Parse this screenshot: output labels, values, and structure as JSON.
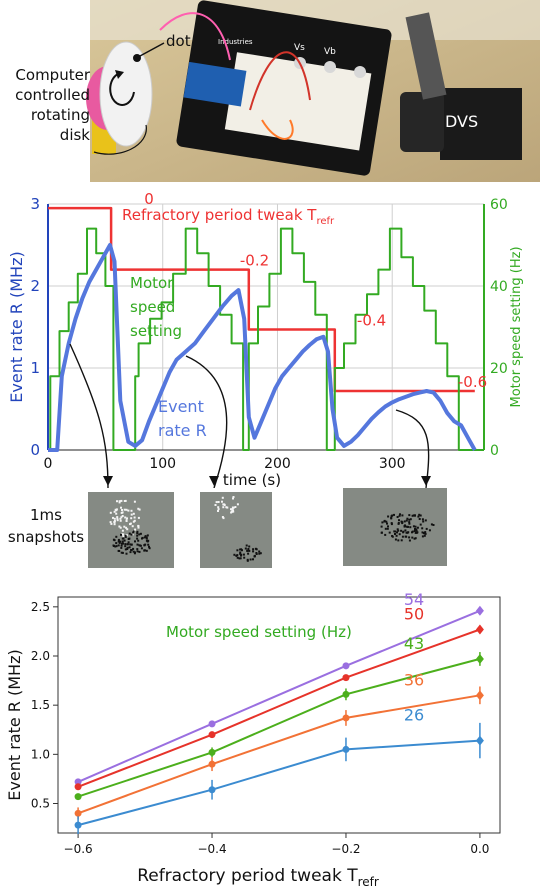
{
  "photo": {
    "label_dot": "dot",
    "label_disk_lines": [
      "Computer",
      "controlled",
      "rotating",
      "disk"
    ],
    "label_dvs": "DVS",
    "board_labels": [
      "Vs",
      "Vb"
    ],
    "board_maker": "Industries"
  },
  "snapshots": {
    "label_lines": [
      "1ms",
      "snapshots"
    ]
  },
  "chart_data": [
    {
      "type": "line",
      "xlabel": "time (s)",
      "xlim": [
        0,
        380
      ],
      "xticks": [
        0,
        100,
        200,
        300
      ],
      "ylabel_left": "Event rate R (MHz)",
      "ylim_left": [
        0,
        3
      ],
      "yticks_left": [
        0,
        1,
        2,
        3
      ],
      "ylabel_right": "Motor speed setting (Hz)",
      "ylim_right": [
        0,
        60
      ],
      "yticks_right": [
        0,
        20,
        40,
        60
      ],
      "grid": true,
      "annotation_refractory": "Refractory period tweak T",
      "annotation_refractory_sub": "refr",
      "annotation_motor_lines": [
        "Motor",
        "speed",
        "setting"
      ],
      "annotation_event_lines": [
        "Event",
        "rate R"
      ],
      "refractory_labels": [
        "0",
        "-0.2",
        "-0.4",
        "-0.6"
      ],
      "colors": {
        "refractory": "#ee3333",
        "motor": "#33aa22",
        "event": "#5577dd",
        "axis_left": "#2244bb",
        "axis_right": "#33aa22"
      },
      "series": [
        {
          "name": "Refractory period tweak",
          "axis": "left",
          "x": [
            0,
            55,
            55,
            175,
            175,
            250,
            250,
            372
          ],
          "y": [
            2.95,
            2.95,
            2.2,
            2.2,
            1.47,
            1.47,
            0.72,
            0.72
          ]
        },
        {
          "name": "Motor speed setting",
          "axis": "right",
          "x": [
            0,
            2,
            2,
            10,
            10,
            18,
            18,
            26,
            26,
            34,
            34,
            42,
            42,
            50,
            50,
            57,
            57,
            76,
            76,
            79,
            79,
            89,
            89,
            99,
            99,
            109,
            109,
            120,
            120,
            130,
            130,
            140,
            140,
            150,
            150,
            160,
            160,
            170,
            170,
            175,
            175,
            183,
            183,
            193,
            193,
            203,
            203,
            213,
            213,
            223,
            223,
            233,
            233,
            243,
            243,
            250,
            250,
            258,
            258,
            268,
            268,
            278,
            278,
            288,
            288,
            298,
            298,
            308,
            308,
            318,
            318,
            328,
            328,
            338,
            338,
            348,
            348,
            358,
            358,
            380
          ],
          "y": [
            0,
            0,
            18,
            18,
            29,
            29,
            36,
            36,
            43,
            43,
            54,
            54,
            48,
            48,
            40,
            40,
            0,
            0,
            18,
            18,
            26,
            26,
            32,
            32,
            36,
            36,
            43,
            43,
            54,
            54,
            48,
            48,
            40,
            40,
            33,
            33,
            26,
            26,
            0,
            0,
            26,
            26,
            35,
            35,
            43,
            43,
            54,
            54,
            48,
            48,
            41,
            41,
            33,
            33,
            0,
            0,
            20,
            20,
            26,
            26,
            33,
            33,
            38,
            38,
            44,
            44,
            54,
            54,
            47,
            47,
            40,
            40,
            34,
            34,
            26,
            26,
            18,
            18,
            0,
            0
          ]
        },
        {
          "name": "Event rate R",
          "axis": "left",
          "x": [
            0,
            8,
            12,
            18,
            24,
            30,
            36,
            42,
            48,
            54,
            58,
            63,
            70,
            76,
            82,
            88,
            94,
            100,
            106,
            112,
            120,
            128,
            136,
            144,
            152,
            160,
            166,
            171,
            175,
            180,
            186,
            192,
            198,
            204,
            210,
            216,
            222,
            228,
            234,
            240,
            244,
            248,
            252,
            258,
            264,
            270,
            276,
            282,
            288,
            294,
            300,
            306,
            312,
            318,
            324,
            330,
            336,
            342,
            348,
            354,
            360,
            366,
            372
          ],
          "y": [
            0,
            0,
            0.9,
            1.3,
            1.6,
            1.85,
            2.05,
            2.2,
            2.35,
            2.5,
            2.3,
            0.6,
            0.1,
            0.05,
            0.12,
            0.35,
            0.55,
            0.75,
            0.95,
            1.1,
            1.2,
            1.3,
            1.45,
            1.6,
            1.75,
            1.88,
            1.95,
            1.6,
            0.4,
            0.15,
            0.35,
            0.55,
            0.75,
            0.9,
            1.0,
            1.1,
            1.2,
            1.28,
            1.35,
            1.38,
            1.2,
            0.5,
            0.15,
            0.05,
            0.1,
            0.18,
            0.28,
            0.38,
            0.46,
            0.53,
            0.58,
            0.62,
            0.65,
            0.68,
            0.7,
            0.72,
            0.7,
            0.6,
            0.45,
            0.35,
            0.3,
            0.15,
            0.0
          ]
        }
      ]
    },
    {
      "type": "line",
      "xlabel": "Refractory period tweak T",
      "xlabel_sub": "refr",
      "ylabel": "Event rate R (MHz)",
      "x": [
        -0.6,
        -0.4,
        -0.2,
        0.0
      ],
      "xlim": [
        -0.63,
        0.03
      ],
      "xticks": [
        -0.6,
        -0.4,
        -0.2,
        0.0
      ],
      "xtick_labels": [
        "−0.6",
        "−0.4",
        "−0.2",
        "0.0"
      ],
      "ylim": [
        0.2,
        2.6
      ],
      "yticks": [
        0.5,
        1.0,
        1.5,
        2.0,
        2.5
      ],
      "ytick_labels": [
        "0.5",
        "1.0",
        "1.5",
        "2.0",
        "2.5"
      ],
      "grid": false,
      "legend_title": "Motor speed setting (Hz)",
      "legend_title_color": "#33aa22",
      "series": [
        {
          "name": "54",
          "color": "#9a6fe0",
          "values": [
            0.72,
            1.31,
            1.9,
            2.46
          ],
          "errors": [
            0.02,
            0.02,
            0.03,
            0.03
          ]
        },
        {
          "name": "50",
          "color": "#e6332a",
          "values": [
            0.67,
            1.2,
            1.78,
            2.27
          ],
          "errors": [
            0.02,
            0.02,
            0.03,
            0.04
          ]
        },
        {
          "name": "43",
          "color": "#4caf1c",
          "values": [
            0.57,
            1.02,
            1.61,
            1.97
          ],
          "errors": [
            0.03,
            0.05,
            0.06,
            0.07
          ]
        },
        {
          "name": "36",
          "color": "#f27236",
          "values": [
            0.4,
            0.9,
            1.37,
            1.6
          ],
          "errors": [
            0.06,
            0.07,
            0.08,
            0.09
          ]
        },
        {
          "name": "26",
          "color": "#3b8bd0",
          "values": [
            0.28,
            0.64,
            1.05,
            1.14
          ],
          "errors": [
            0.09,
            0.1,
            0.12,
            0.18
          ]
        }
      ]
    }
  ]
}
